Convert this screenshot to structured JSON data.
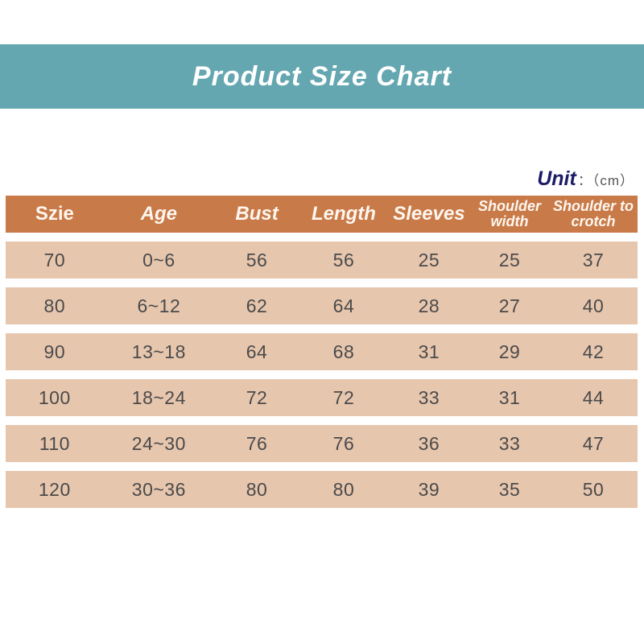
{
  "banner": {
    "title": "Product Size Chart",
    "bg_color": "#64a7b1",
    "text_color": "#ffffff"
  },
  "unit": {
    "label": "Unit",
    "suffix": "：（cm）"
  },
  "table": {
    "header_bg": "#c87a48",
    "row_bg": "#e7c6ae",
    "columns": [
      {
        "label": "Szie",
        "italic": false,
        "twoline": false
      },
      {
        "label": "Age",
        "italic": true,
        "twoline": false
      },
      {
        "label": "Bust",
        "italic": true,
        "twoline": false
      },
      {
        "label": "Length",
        "italic": true,
        "twoline": false
      },
      {
        "label": "Sleeves",
        "italic": true,
        "twoline": false
      },
      {
        "label": "Shoulder width",
        "italic": true,
        "twoline": true
      },
      {
        "label": "Shoulder to crotch",
        "italic": true,
        "twoline": true
      }
    ],
    "rows": [
      [
        "70",
        "0~6",
        "56",
        "56",
        "25",
        "25",
        "37"
      ],
      [
        "80",
        "6~12",
        "62",
        "64",
        "28",
        "27",
        "40"
      ],
      [
        "90",
        "13~18",
        "64",
        "68",
        "31",
        "29",
        "42"
      ],
      [
        "100",
        "18~24",
        "72",
        "72",
        "33",
        "31",
        "44"
      ],
      [
        "110",
        "24~30",
        "76",
        "76",
        "36",
        "33",
        "47"
      ],
      [
        "120",
        "30~36",
        "80",
        "80",
        "39",
        "35",
        "50"
      ]
    ]
  },
  "chart_data": {
    "type": "table",
    "title": "Product Size Chart",
    "unit": "cm",
    "columns": [
      "Szie",
      "Age",
      "Bust",
      "Length",
      "Sleeves",
      "Shoulder width",
      "Shoulder to crotch"
    ],
    "rows": [
      [
        "70",
        "0~6",
        "56",
        "56",
        "25",
        "25",
        "37"
      ],
      [
        "80",
        "6~12",
        "62",
        "64",
        "28",
        "27",
        "40"
      ],
      [
        "90",
        "13~18",
        "64",
        "68",
        "31",
        "29",
        "42"
      ],
      [
        "100",
        "18~24",
        "72",
        "72",
        "33",
        "31",
        "44"
      ],
      [
        "110",
        "24~30",
        "76",
        "76",
        "36",
        "33",
        "47"
      ],
      [
        "120",
        "30~36",
        "80",
        "80",
        "39",
        "35",
        "50"
      ]
    ]
  }
}
